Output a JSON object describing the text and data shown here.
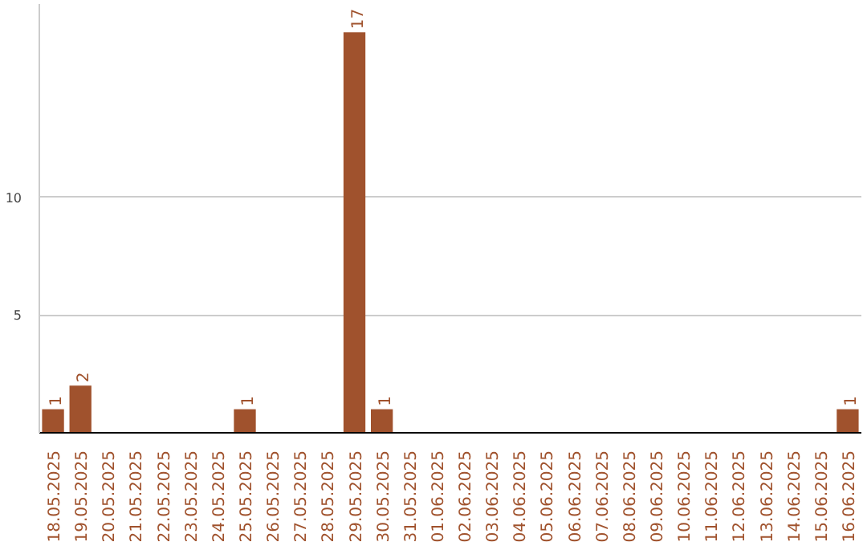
{
  "chart_data": {
    "type": "bar",
    "categories": [
      "18.05.2025",
      "19.05.2025",
      "20.05.2025",
      "21.05.2025",
      "22.05.2025",
      "23.05.2025",
      "24.05.2025",
      "25.05.2025",
      "26.05.2025",
      "27.05.2025",
      "28.05.2025",
      "29.05.2025",
      "30.05.2025",
      "31.05.2025",
      "01.06.2025",
      "02.06.2025",
      "03.06.2025",
      "04.06.2025",
      "05.06.2025",
      "06.06.2025",
      "07.06.2025",
      "08.06.2025",
      "09.06.2025",
      "10.06.2025",
      "11.06.2025",
      "12.06.2025",
      "13.06.2025",
      "14.06.2025",
      "15.06.2025",
      "16.06.2025"
    ],
    "values": [
      1,
      2,
      0,
      0,
      0,
      0,
      0,
      1,
      0,
      0,
      0,
      17,
      1,
      0,
      0,
      0,
      0,
      0,
      0,
      0,
      0,
      0,
      0,
      0,
      0,
      0,
      0,
      0,
      0,
      1
    ],
    "value_labels": [
      "1",
      "2",
      null,
      null,
      null,
      null,
      null,
      "1",
      null,
      null,
      null,
      "17",
      "1",
      null,
      null,
      null,
      null,
      null,
      null,
      null,
      null,
      null,
      null,
      null,
      null,
      null,
      null,
      null,
      null,
      "1"
    ],
    "color": "#a0522d",
    "ylim": [
      0,
      18.2
    ],
    "yticks": [
      5,
      10
    ],
    "grid": "y"
  }
}
